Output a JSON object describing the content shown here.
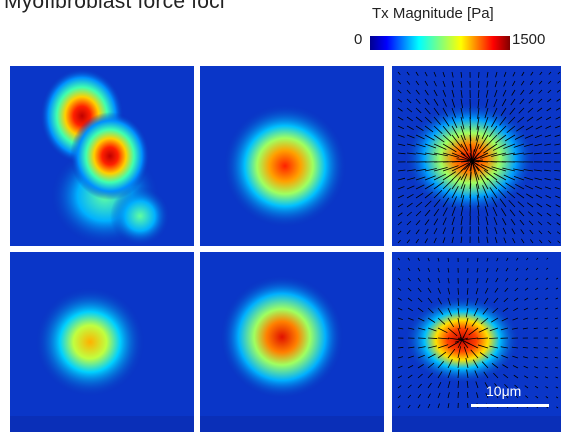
{
  "figure": {
    "title": "Myofibroblast force foci",
    "colorbar": {
      "label": "Tx Magnitude [Pa]",
      "min": "0",
      "max": "1500",
      "colormap": "jet"
    },
    "scalebar": {
      "label": "10μm"
    },
    "panels": [
      {
        "name": "panel-top-left",
        "has_vectors": false
      },
      {
        "name": "panel-top-middle",
        "has_vectors": false
      },
      {
        "name": "panel-top-right",
        "has_vectors": true
      },
      {
        "name": "panel-bottom-left",
        "has_vectors": false
      },
      {
        "name": "panel-bottom-middle",
        "has_vectors": false
      },
      {
        "name": "panel-bottom-right",
        "has_vectors": true
      }
    ]
  }
}
